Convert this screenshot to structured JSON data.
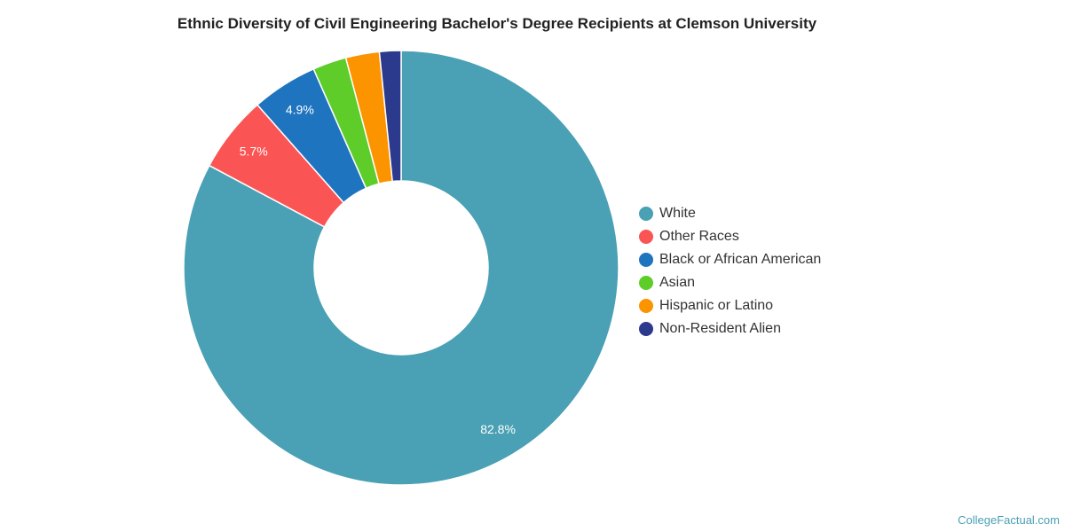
{
  "chart_data": {
    "type": "pie",
    "variant": "donut",
    "title": "Ethnic Diversity of Civil Engineering Bachelor's Degree Recipients at Clemson University",
    "legend_position": "right",
    "slices": [
      {
        "name": "White",
        "value": 82.8,
        "label": "82.8%",
        "color": "#4aa0b4"
      },
      {
        "name": "Other Races",
        "value": 5.7,
        "label": "5.7%",
        "color": "#fb5454"
      },
      {
        "name": "Black or African American",
        "value": 4.9,
        "label": "4.9%",
        "color": "#1f74bf"
      },
      {
        "name": "Asian",
        "value": 2.5,
        "label": "",
        "color": "#5ecd2a"
      },
      {
        "name": "Hispanic or Latino",
        "value": 2.5,
        "label": "",
        "color": "#fc9400"
      },
      {
        "name": "Non-Resident Alien",
        "value": 1.6,
        "label": "",
        "color": "#2c3a8e"
      }
    ]
  },
  "credit": "CollegeFactual.com"
}
